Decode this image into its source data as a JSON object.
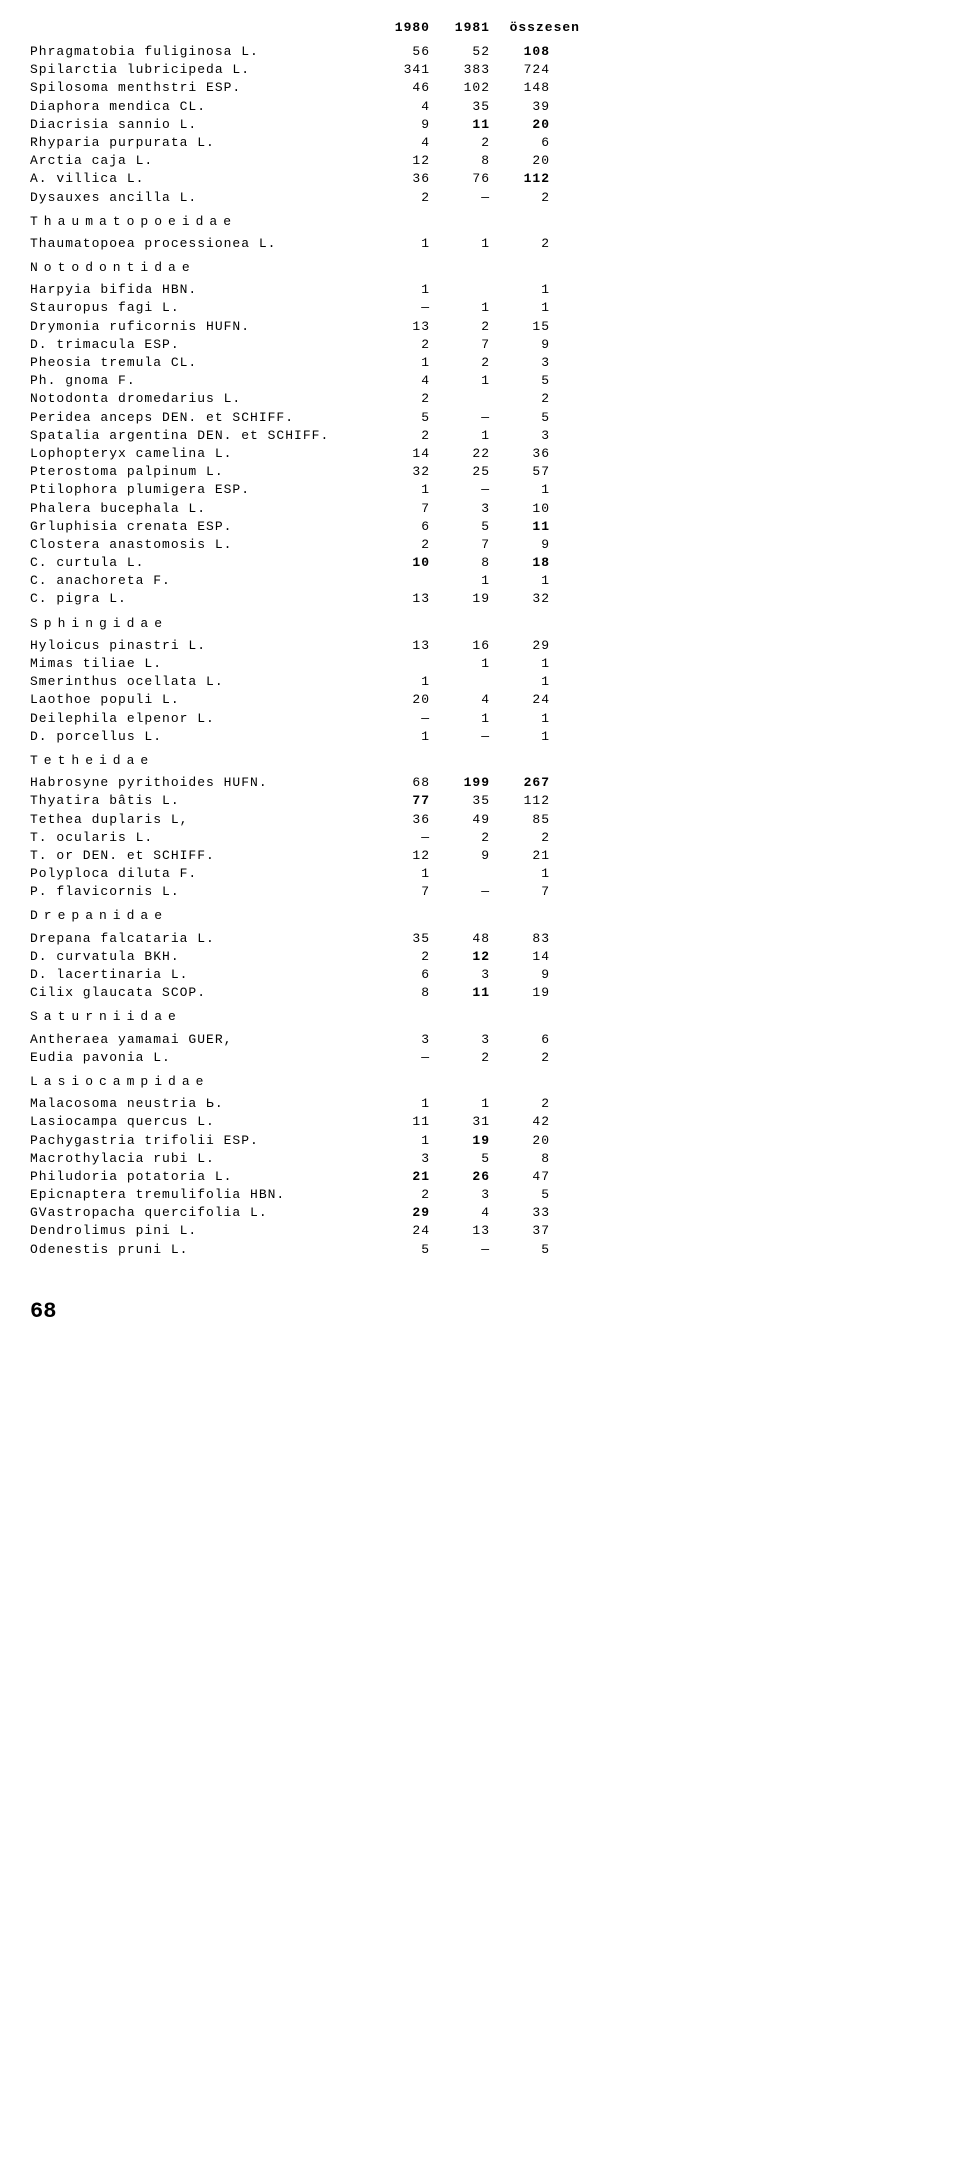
{
  "header": {
    "col1": "1980",
    "col2": "1981",
    "col3": "összesen"
  },
  "rows": [
    {
      "name": "Phragmatobia fuliginosa L.",
      "c1": "56",
      "c2": "52",
      "c3": "108",
      "b3": true
    },
    {
      "name": "Spilarctia lubricipeda L.",
      "c1": "341",
      "c2": "383",
      "c3": "724"
    },
    {
      "name": "Spilosoma menthstri ESP.",
      "c1": "46",
      "c2": "102",
      "c3": "148"
    },
    {
      "name": "Diaphora mendica CL.",
      "c1": "4",
      "c2": "35",
      "c3": "39"
    },
    {
      "name": "Diacrisia sannio L.",
      "c1": "9",
      "c2": "11",
      "c3": "20",
      "b2": true,
      "b3": true
    },
    {
      "name": "Rhyparia purpurata L.",
      "c1": "4",
      "c2": "2",
      "c3": "6"
    },
    {
      "name": "Arctia caja L.",
      "c1": "12",
      "c2": "8",
      "c3": "20"
    },
    {
      "name": "A. villica L.",
      "c1": "36",
      "c2": "76",
      "c3": "112",
      "b3": true
    },
    {
      "name": "Dysauxes ancilla L.",
      "c1": "2",
      "c2": "—",
      "c3": "2"
    },
    {
      "family": "Thaumatopoeidae"
    },
    {
      "name": "Thaumatopoea processionea L.",
      "c1": "1",
      "c2": "1",
      "c3": "2"
    },
    {
      "family": "Notodontidae"
    },
    {
      "name": "Harpyia bifida HBN.",
      "c1": "1",
      "c2": "",
      "c3": "1"
    },
    {
      "name": "Stauropus fagi L.",
      "c1": "—",
      "c2": "1",
      "c3": "1"
    },
    {
      "name": "Drymonia ruficornis HUFN.",
      "c1": "13",
      "c2": "2",
      "c3": "15"
    },
    {
      "name": "D. trimacula ESP.",
      "c1": "2",
      "c2": "7",
      "c3": "9"
    },
    {
      "name": "Pheosia tremula CL.",
      "c1": "1",
      "c2": "2",
      "c3": "3"
    },
    {
      "name": "Ph. gnoma F.",
      "c1": "4",
      "c2": "1",
      "c3": "5"
    },
    {
      "name": "Notodonta dromedarius L.",
      "c1": "2",
      "c2": "",
      "c3": "2"
    },
    {
      "name": "Peridea anceps DEN. et SCHIFF.",
      "c1": "5",
      "c2": "—",
      "c3": "5"
    },
    {
      "name": "Spatalia argentina DEN. et SCHIFF.",
      "c1": "2",
      "c2": "1",
      "c3": "3"
    },
    {
      "name": "Lophopteryx camelina L.",
      "c1": "14",
      "c2": "22",
      "c3": "36"
    },
    {
      "name": "Pterostoma palpinum L.",
      "c1": "32",
      "c2": "25",
      "c3": "57"
    },
    {
      "name": "Ptilophora plumigera ESP.",
      "c1": "1",
      "c2": "—",
      "c3": "1"
    },
    {
      "name": "Phalera bucephala L.",
      "c1": "7",
      "c2": "3",
      "c3": "10"
    },
    {
      "name": "Grluphisia crenata ESP.",
      "c1": "6",
      "c2": "5",
      "c3": "11",
      "b3": true
    },
    {
      "name": "Clostera anastomosis L.",
      "c1": "2",
      "c2": "7",
      "c3": "9"
    },
    {
      "name": "C. curtula L.",
      "c1": "10",
      "c2": "8",
      "c3": "18",
      "b1": true,
      "b3": true
    },
    {
      "name": "C. anachoreta F.",
      "c1": "",
      "c2": "1",
      "c3": "1"
    },
    {
      "name": "C. pigra L.",
      "c1": "13",
      "c2": "19",
      "c3": "32"
    },
    {
      "family": "Sphingidae"
    },
    {
      "name": "Hyloicus pinastri L.",
      "c1": "13",
      "c2": "16",
      "c3": "29"
    },
    {
      "name": "Mimas tiliae L.",
      "c1": "",
      "c2": "1",
      "c3": "1"
    },
    {
      "name": "Smerinthus ocellata L.",
      "c1": "1",
      "c2": "",
      "c3": "1"
    },
    {
      "name": "Laothoe populi L.",
      "c1": "20",
      "c2": "4",
      "c3": "24"
    },
    {
      "name": "Deilephila elpenor L.",
      "c1": "—",
      "c2": "1",
      "c3": "1"
    },
    {
      "name": "D. porcellus L.",
      "c1": "1",
      "c2": "—",
      "c3": "1"
    },
    {
      "family": "Tetheidae"
    },
    {
      "name": "Habrosyne pyrithoides HUFN.",
      "c1": "68",
      "c2": "199",
      "c3": "267",
      "b2": true,
      "b3": true
    },
    {
      "name": "Thyatira bâtis L.",
      "c1": "77",
      "c2": "35",
      "c3": "112",
      "b1": true
    },
    {
      "name": "Tethea duplaris L,",
      "c1": "36",
      "c2": "49",
      "c3": "85"
    },
    {
      "name": "T. ocularis L.",
      "c1": "—",
      "c2": "2",
      "c3": "2"
    },
    {
      "name": "T. or DEN. et SCHIFF.",
      "c1": "12",
      "c2": "9",
      "c3": "21"
    },
    {
      "name": "Polyploca diluta F.",
      "c1": "1",
      "c2": "",
      "c3": "1"
    },
    {
      "name": "P. flavicornis L.",
      "c1": "7",
      "c2": "—",
      "c3": "7"
    },
    {
      "family": "Drepanidae"
    },
    {
      "name": "Drepana falcataria L.",
      "c1": "35",
      "c2": "48",
      "c3": "83"
    },
    {
      "name": "D. curvatula BKH.",
      "c1": "2",
      "c2": "12",
      "c3": "14",
      "b2": true
    },
    {
      "name": "D. lacertinaria L.",
      "c1": "6",
      "c2": "3",
      "c3": "9"
    },
    {
      "name": "Cilix glaucata SCOP.",
      "c1": "8",
      "c2": "11",
      "c3": "19",
      "b2": true
    },
    {
      "family": "Saturniidae"
    },
    {
      "name": "Antheraea yamamai GUER,",
      "c1": "3",
      "c2": "3",
      "c3": "6"
    },
    {
      "name": "Eudia pavonia L.",
      "c1": "—",
      "c2": "2",
      "c3": "2"
    },
    {
      "family": "Lasiocampidae"
    },
    {
      "name": "Malacosoma neustria Ь.",
      "c1": "1",
      "c2": "1",
      "c3": "2"
    },
    {
      "name": "Lasiocampa quercus L.",
      "c1": "11",
      "c2": "31",
      "c3": "42"
    },
    {
      "name": "Pachygastria trifolii ESP.",
      "c1": "1",
      "c2": "19",
      "c3": "20",
      "b2": true
    },
    {
      "name": "Macrothylacia rubi L.",
      "c1": "3",
      "c2": "5",
      "c3": "8"
    },
    {
      "name": "Philudoria potatoria L.",
      "c1": "21",
      "c2": "26",
      "c3": "47",
      "b1": true,
      "b2": true
    },
    {
      "name": "Epicnaptera tremulifolia HBN.",
      "c1": "2",
      "c2": "3",
      "c3": "5"
    },
    {
      "name": "GVastropacha quercifolia L.",
      "c1": "29",
      "c2": "4",
      "c3": "33",
      "b1": true
    },
    {
      "name": "Dendrolimus pini L.",
      "c1": "24",
      "c2": "13",
      "c3": "37"
    },
    {
      "name": "Odenestis pruni L.",
      "c1": "5",
      "c2": "—",
      "c3": "5"
    }
  ],
  "pageNumber": "68"
}
